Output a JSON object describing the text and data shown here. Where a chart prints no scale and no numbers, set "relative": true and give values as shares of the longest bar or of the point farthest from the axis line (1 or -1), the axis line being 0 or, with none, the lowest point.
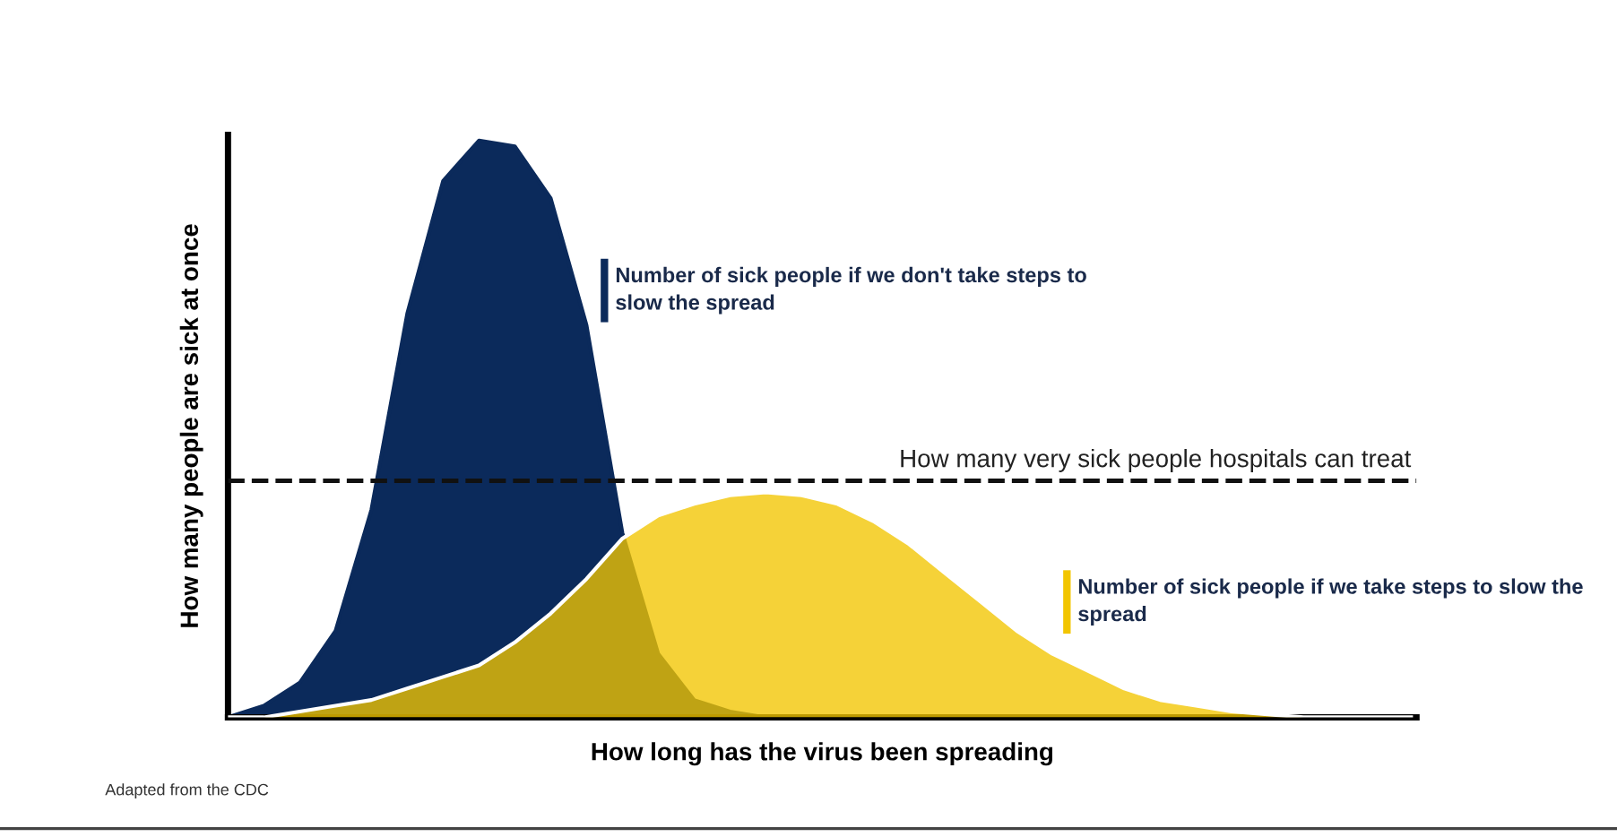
{
  "chart_data": {
    "type": "area",
    "relative": true,
    "xlabel": "How long has the virus been spreading",
    "ylabel": "How many people are sick at once",
    "categories": [
      null,
      null,
      null,
      null,
      null,
      null,
      null,
      null,
      null,
      null,
      null,
      null,
      null,
      null,
      null,
      null,
      null,
      null,
      null,
      null,
      null,
      null,
      null,
      null,
      null,
      null,
      null,
      null,
      null,
      null,
      null,
      null,
      null,
      null
    ],
    "series": [
      {
        "name": "Number of sick people if we don't take steps to slow the spread",
        "color": "#0b2a5b",
        "values": [
          0,
          0.02,
          0.06,
          0.15,
          0.36,
          0.7,
          0.93,
          1.0,
          0.99,
          0.9,
          0.68,
          0.32,
          0.11,
          0.03,
          0.01,
          0,
          0,
          0,
          0,
          0,
          0,
          0,
          0,
          0,
          0,
          0,
          0,
          0,
          0,
          0,
          0,
          0,
          0,
          0
        ]
      },
      {
        "name": "Number of sick people if we take steps to slow the spread",
        "color": "#f2c500",
        "values": [
          0,
          0,
          0.01,
          0.02,
          0.03,
          0.05,
          0.07,
          0.09,
          0.13,
          0.18,
          0.24,
          0.31,
          0.35,
          0.37,
          0.385,
          0.39,
          0.385,
          0.37,
          0.34,
          0.3,
          0.25,
          0.2,
          0.15,
          0.11,
          0.08,
          0.05,
          0.03,
          0.02,
          0.01,
          0.005,
          0,
          0,
          0,
          0
        ]
      }
    ],
    "ref_lines": [
      {
        "axis": "y",
        "value": 0.41,
        "label": "How many very sick people hospitals can treat",
        "color": "#111111",
        "line_style": "dashed"
      }
    ],
    "annotations": [
      "Adapted from the CDC"
    ],
    "legend": false
  }
}
